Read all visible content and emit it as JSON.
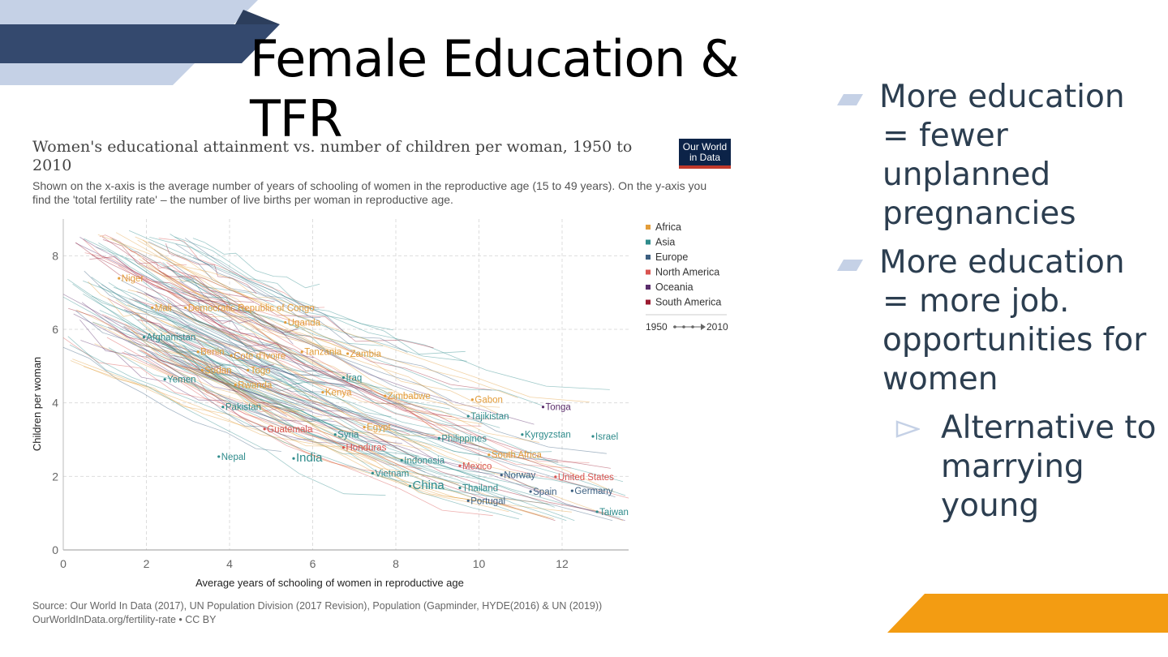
{
  "slide": {
    "title": "Female Education & TFR",
    "bullets": [
      "More education = fewer unplanned pregnancies",
      "More education = more job. opportunities for women"
    ],
    "sub_bullet": "Alternative to marrying young",
    "colors": {
      "navy": "#34496e",
      "light_blue": "#c5d1e6",
      "orange": "#f39c12",
      "text": "#2c3e50"
    }
  },
  "figure": {
    "title": "Women's educational attainment vs. number of children per woman, 1950 to 2010",
    "subtitle": "Shown on the x-axis is the average number of years of schooling of women in the reproductive age (15 to 49 years). On the y-axis you find the 'total fertility rate' – the number of live births per woman in reproductive age.",
    "logo_line1": "Our World",
    "logo_line2": "in Data",
    "source_line1": "Source: Our World In Data (2017), UN Population Division (2017 Revision), Population (Gapminder, HYDE(2016) & UN (2019))",
    "source_line2": "OurWorldInData.org/fertility-rate • CC BY"
  },
  "chart_data": {
    "type": "line",
    "xlabel": "Average years of schooling of women in reproductive age",
    "ylabel": "Children per woman",
    "xlim": [
      0,
      13.6
    ],
    "ylim": [
      0,
      9
    ],
    "xticks": [
      0,
      2,
      4,
      6,
      8,
      10,
      12
    ],
    "yticks": [
      0,
      2,
      4,
      6,
      8
    ],
    "grid": true,
    "legend_position": "right",
    "time_legend": {
      "start": "1950",
      "end": "2010"
    },
    "regions": [
      {
        "name": "Africa",
        "color": "#e39d3a"
      },
      {
        "name": "Asia",
        "color": "#2e8b8b"
      },
      {
        "name": "Europe",
        "color": "#3c5f80"
      },
      {
        "name": "North America",
        "color": "#d9534f"
      },
      {
        "name": "Oceania",
        "color": "#5a2d6b"
      },
      {
        "name": "South America",
        "color": "#9b1b30"
      }
    ],
    "labels": [
      {
        "text": "Niger",
        "x": 1.4,
        "y": 7.3,
        "region": "Africa"
      },
      {
        "text": "Mali",
        "x": 2.2,
        "y": 6.5,
        "region": "Africa"
      },
      {
        "text": "Democratic Republic of Congo",
        "x": 3.0,
        "y": 6.5,
        "region": "Africa"
      },
      {
        "text": "Uganda",
        "x": 5.4,
        "y": 6.1,
        "region": "Africa"
      },
      {
        "text": "Afghanistan",
        "x": 2.0,
        "y": 5.7,
        "region": "Asia"
      },
      {
        "text": "Benin",
        "x": 3.3,
        "y": 5.3,
        "region": "Africa"
      },
      {
        "text": "Cote d'Ivoire",
        "x": 4.1,
        "y": 5.2,
        "region": "Africa"
      },
      {
        "text": "Tanzania",
        "x": 5.8,
        "y": 5.3,
        "region": "Africa"
      },
      {
        "text": "Zambia",
        "x": 6.9,
        "y": 5.25,
        "region": "Africa"
      },
      {
        "text": "Sudan",
        "x": 3.4,
        "y": 4.8,
        "region": "Africa"
      },
      {
        "text": "Togo",
        "x": 4.5,
        "y": 4.8,
        "region": "Africa"
      },
      {
        "text": "Yemen",
        "x": 2.5,
        "y": 4.55,
        "region": "Asia"
      },
      {
        "text": "Iraq",
        "x": 6.8,
        "y": 4.6,
        "region": "Asia"
      },
      {
        "text": "Rwanda",
        "x": 4.2,
        "y": 4.4,
        "region": "Africa"
      },
      {
        "text": "Kenya",
        "x": 6.3,
        "y": 4.2,
        "region": "Africa"
      },
      {
        "text": "Zimbabwe",
        "x": 7.8,
        "y": 4.1,
        "region": "Africa"
      },
      {
        "text": "Gabon",
        "x": 9.9,
        "y": 4.0,
        "region": "Africa"
      },
      {
        "text": "Tonga",
        "x": 11.6,
        "y": 3.8,
        "region": "Oceania"
      },
      {
        "text": "Pakistan",
        "x": 3.9,
        "y": 3.8,
        "region": "Asia"
      },
      {
        "text": "Tajikistan",
        "x": 9.8,
        "y": 3.55,
        "region": "Asia"
      },
      {
        "text": "Guatemala",
        "x": 4.9,
        "y": 3.2,
        "region": "North America"
      },
      {
        "text": "Egypt",
        "x": 7.3,
        "y": 3.25,
        "region": "Africa"
      },
      {
        "text": "Syria",
        "x": 6.6,
        "y": 3.05,
        "region": "Asia"
      },
      {
        "text": "Kyrgyzstan",
        "x": 11.1,
        "y": 3.05,
        "region": "Asia"
      },
      {
        "text": "Israel",
        "x": 12.8,
        "y": 3.0,
        "region": "Asia"
      },
      {
        "text": "Philippines",
        "x": 9.1,
        "y": 2.95,
        "region": "Asia"
      },
      {
        "text": "Honduras",
        "x": 6.8,
        "y": 2.7,
        "region": "North America"
      },
      {
        "text": "South Africa",
        "x": 10.3,
        "y": 2.5,
        "region": "Africa"
      },
      {
        "text": "Nepal",
        "x": 3.8,
        "y": 2.45,
        "region": "Asia"
      },
      {
        "text": "India",
        "x": 5.6,
        "y": 2.4,
        "region": "Asia"
      },
      {
        "text": "Indonesia",
        "x": 8.2,
        "y": 2.35,
        "region": "Asia"
      },
      {
        "text": "Mexico",
        "x": 9.6,
        "y": 2.2,
        "region": "North America"
      },
      {
        "text": "Vietnam",
        "x": 7.5,
        "y": 2.0,
        "region": "Asia"
      },
      {
        "text": "Norway",
        "x": 10.6,
        "y": 1.95,
        "region": "Europe"
      },
      {
        "text": "United States",
        "x": 11.9,
        "y": 1.9,
        "region": "North America"
      },
      {
        "text": "China",
        "x": 8.4,
        "y": 1.65,
        "region": "Asia"
      },
      {
        "text": "Thailand",
        "x": 9.6,
        "y": 1.6,
        "region": "Asia"
      },
      {
        "text": "Spain",
        "x": 11.3,
        "y": 1.5,
        "region": "Europe"
      },
      {
        "text": "Germany",
        "x": 12.3,
        "y": 1.52,
        "region": "Europe"
      },
      {
        "text": "Portugal",
        "x": 9.8,
        "y": 1.25,
        "region": "Europe"
      },
      {
        "text": "Taiwan",
        "x": 12.9,
        "y": 0.95,
        "region": "Asia"
      }
    ]
  }
}
